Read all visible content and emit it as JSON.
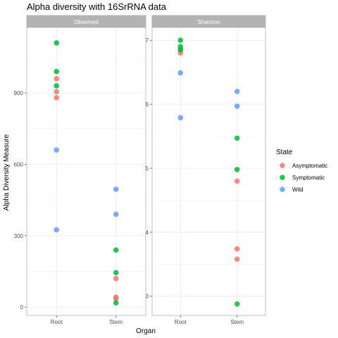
{
  "chart_data": {
    "type": "scatter",
    "title": "Alpha diversity with 16SrRNA data",
    "xlabel": "Organ",
    "ylabel": "Alpha Diversity Measure",
    "categories": [
      "Root",
      "Stem"
    ],
    "legend": {
      "title": "State",
      "position": "right",
      "entries": [
        {
          "label": "Asymptomatic",
          "color": "#F8766D"
        },
        {
          "label": "Symptomatic",
          "color": "#00BA38"
        },
        {
          "label": "Wild",
          "color": "#619CFF"
        }
      ]
    },
    "grid": true,
    "facets": [
      {
        "name": "Observed",
        "ylim": [
          -35,
          1175
        ],
        "yticks": [
          0,
          300,
          600,
          900
        ],
        "ytick_labels": [
          "0",
          "300",
          "600",
          "900"
        ],
        "series": [
          {
            "name": "Asymptomatic",
            "points": [
              {
                "x": "Root",
                "y": 960
              },
              {
                "x": "Root",
                "y": 905
              },
              {
                "x": "Root",
                "y": 880
              },
              {
                "x": "Stem",
                "y": 120
              },
              {
                "x": "Stem",
                "y": 42
              },
              {
                "x": "Stem",
                "y": 35
              }
            ]
          },
          {
            "name": "Symptomatic",
            "points": [
              {
                "x": "Root",
                "y": 1110
              },
              {
                "x": "Root",
                "y": 990
              },
              {
                "x": "Root",
                "y": 930
              },
              {
                "x": "Stem",
                "y": 240
              },
              {
                "x": "Stem",
                "y": 145
              },
              {
                "x": "Stem",
                "y": 18
              }
            ]
          },
          {
            "name": "Wild",
            "points": [
              {
                "x": "Root",
                "y": 660
              },
              {
                "x": "Root",
                "y": 325
              },
              {
                "x": "Stem",
                "y": 495
              },
              {
                "x": "Stem",
                "y": 390
              }
            ]
          }
        ]
      },
      {
        "name": "Shannon",
        "ylim": [
          2.7,
          7.2
        ],
        "yticks": [
          3,
          4,
          5,
          6,
          7
        ],
        "ytick_labels": [
          "3",
          "4",
          "5",
          "6",
          "7"
        ],
        "series": [
          {
            "name": "Asymptomatic",
            "points": [
              {
                "x": "Root",
                "y": 6.8
              },
              {
                "x": "Root",
                "y": 6.85
              },
              {
                "x": "Stem",
                "y": 4.8
              },
              {
                "x": "Stem",
                "y": 3.74
              },
              {
                "x": "Stem",
                "y": 3.58
              }
            ]
          },
          {
            "name": "Symptomatic",
            "points": [
              {
                "x": "Root",
                "y": 7.0
              },
              {
                "x": "Root",
                "y": 6.9
              },
              {
                "x": "Root",
                "y": 6.85
              },
              {
                "x": "Stem",
                "y": 5.47
              },
              {
                "x": "Stem",
                "y": 4.98
              },
              {
                "x": "Stem",
                "y": 2.88
              }
            ]
          },
          {
            "name": "Wild",
            "points": [
              {
                "x": "Root",
                "y": 6.49
              },
              {
                "x": "Root",
                "y": 5.79
              },
              {
                "x": "Stem",
                "y": 6.2
              },
              {
                "x": "Stem",
                "y": 5.97
              }
            ]
          }
        ]
      }
    ]
  }
}
